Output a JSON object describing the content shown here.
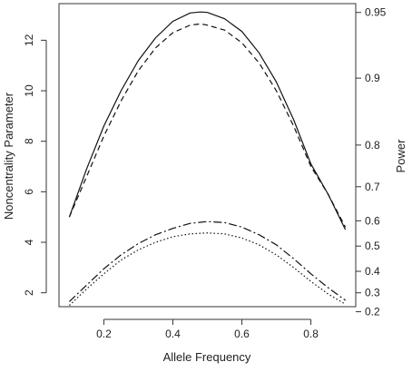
{
  "chart_data": {
    "type": "line",
    "title": "",
    "xlabel": "Allele Frequency",
    "ylabel": "Noncentrality Parameter",
    "y2label": "Power",
    "xlim": [
      0.07,
      0.93
    ],
    "ylim": [
      1.45,
      13.45
    ],
    "x_ticks": [
      0.2,
      0.4,
      0.6,
      0.8
    ],
    "x_tick_labels": [
      "0.2",
      "0.4",
      "0.6",
      "0.8"
    ],
    "y_ticks": [
      2,
      4,
      6,
      8,
      10,
      12
    ],
    "y_tick_labels": [
      "2",
      "4",
      "6",
      "8",
      "10",
      "12"
    ],
    "y2_ticks": [
      {
        "label": "0.95",
        "ncp": 13.1
      },
      {
        "label": "0.9",
        "ncp": 10.5
      },
      {
        "label": "0.8",
        "ncp": 7.85
      },
      {
        "label": "0.7",
        "ncp": 6.2
      },
      {
        "label": "0.6",
        "ncp": 4.85
      },
      {
        "label": "0.5",
        "ncp": 3.85
      },
      {
        "label": "0.4",
        "ncp": 2.85
      },
      {
        "label": "0.3",
        "ncp": 2.0
      },
      {
        "label": "0.2",
        "ncp": 1.25
      }
    ],
    "grid": false,
    "legend": "none",
    "series": [
      {
        "line_style": "solid",
        "x": [
          0.1,
          0.15,
          0.2,
          0.25,
          0.3,
          0.35,
          0.4,
          0.45,
          0.48,
          0.5,
          0.55,
          0.6,
          0.65,
          0.7,
          0.75,
          0.8,
          0.85,
          0.9
        ],
        "y": [
          5.0,
          6.9,
          8.6,
          10.0,
          11.2,
          12.1,
          12.75,
          13.08,
          13.12,
          13.1,
          12.85,
          12.35,
          11.5,
          10.35,
          8.85,
          7.1,
          5.9,
          4.5
        ]
      },
      {
        "line_style": "dashed",
        "x": [
          0.1,
          0.15,
          0.2,
          0.25,
          0.3,
          0.35,
          0.4,
          0.45,
          0.48,
          0.5,
          0.55,
          0.6,
          0.65,
          0.7,
          0.75,
          0.8,
          0.85,
          0.9
        ],
        "y": [
          5.0,
          6.6,
          8.2,
          9.6,
          10.8,
          11.7,
          12.3,
          12.6,
          12.65,
          12.6,
          12.4,
          11.9,
          11.1,
          10.0,
          8.6,
          7.0,
          5.9,
          4.6
        ]
      },
      {
        "line_style": "dotdash",
        "x": [
          0.1,
          0.15,
          0.2,
          0.25,
          0.3,
          0.35,
          0.4,
          0.45,
          0.5,
          0.55,
          0.6,
          0.65,
          0.7,
          0.75,
          0.8,
          0.85,
          0.9
        ],
        "y": [
          1.65,
          2.3,
          2.95,
          3.5,
          3.95,
          4.3,
          4.55,
          4.75,
          4.82,
          4.78,
          4.6,
          4.3,
          3.9,
          3.35,
          2.75,
          2.2,
          1.7
        ]
      },
      {
        "line_style": "dotted",
        "x": [
          0.1,
          0.15,
          0.2,
          0.25,
          0.3,
          0.35,
          0.4,
          0.45,
          0.5,
          0.55,
          0.6,
          0.65,
          0.7,
          0.75,
          0.8,
          0.85,
          0.9
        ],
        "y": [
          1.5,
          2.15,
          2.75,
          3.3,
          3.7,
          4.0,
          4.22,
          4.33,
          4.37,
          4.33,
          4.17,
          3.9,
          3.5,
          3.0,
          2.45,
          1.95,
          1.55
        ]
      }
    ]
  }
}
